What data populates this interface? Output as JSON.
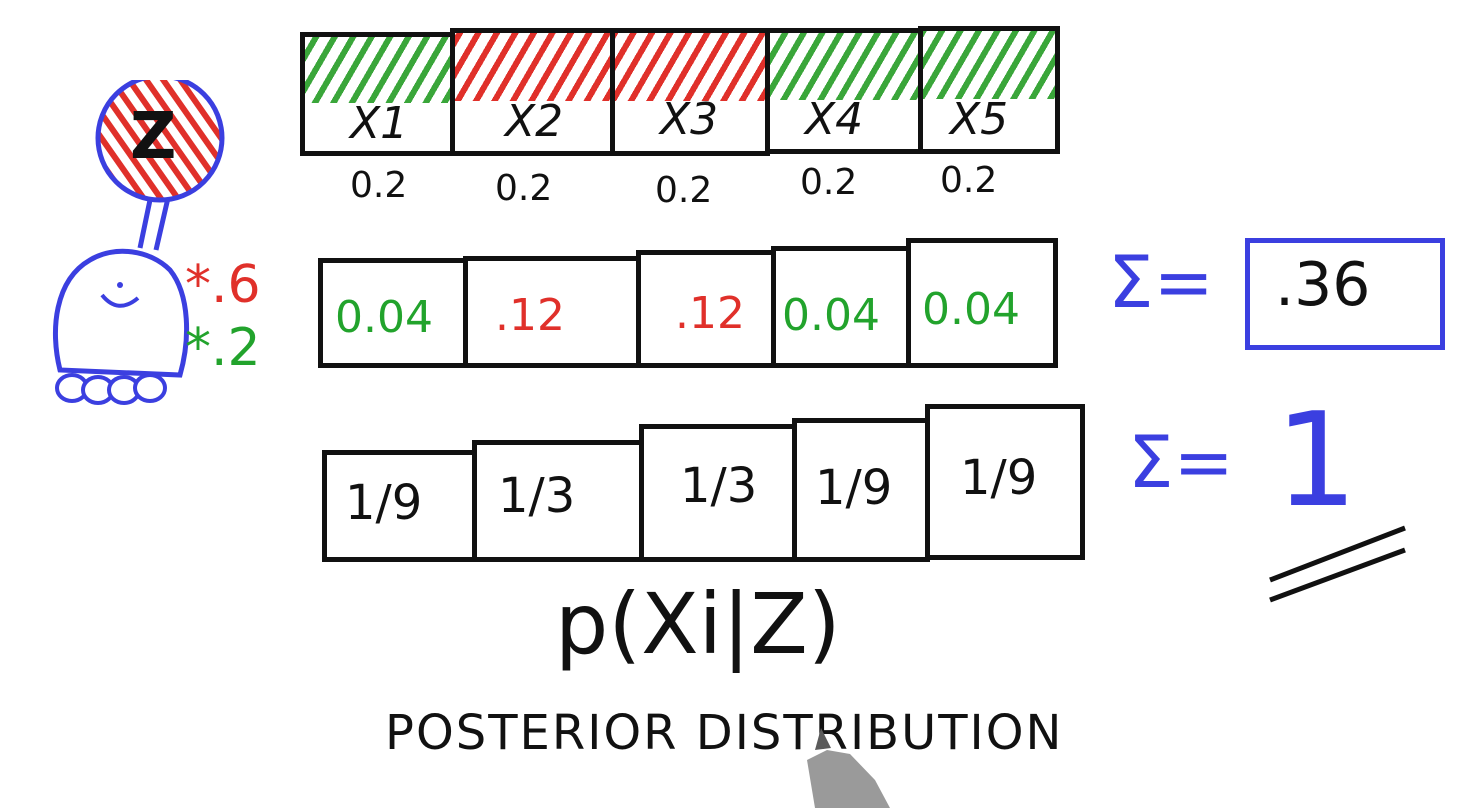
{
  "prior": {
    "cells": [
      {
        "label": "X1",
        "value": "0.2",
        "hatch": "green"
      },
      {
        "label": "X2",
        "value": "0.2",
        "hatch": "red"
      },
      {
        "label": "X3",
        "value": "0.2",
        "hatch": "red"
      },
      {
        "label": "X4",
        "value": "0.2",
        "hatch": "green"
      },
      {
        "label": "X5",
        "value": "0.2",
        "hatch": "green"
      }
    ]
  },
  "robot": {
    "measurement_label": "Z",
    "red_multiplier": "*.6",
    "green_multiplier": "*.2"
  },
  "product": {
    "cells": [
      {
        "value": "0.04",
        "color": "green"
      },
      {
        "value": ".12",
        "color": "red"
      },
      {
        "value": ".12",
        "color": "red"
      },
      {
        "value": "0.04",
        "color": "green"
      },
      {
        "value": "0.04",
        "color": "green"
      }
    ],
    "sum_symbol": "Σ=",
    "sum_value": ".36"
  },
  "posterior": {
    "cells": [
      {
        "value": "1/9"
      },
      {
        "value": "1/3"
      },
      {
        "value": "1/3"
      },
      {
        "value": "1/9"
      },
      {
        "value": "1/9"
      }
    ],
    "sum_symbol": "Σ=",
    "sum_value": "1"
  },
  "formula": "p(Xi|Z)",
  "caption": "POSTERIOR DISTRIBUTION",
  "colors": {
    "ink": "#111111",
    "green": "#22a32c",
    "red": "#e0302a",
    "blue": "#3b3fe0"
  }
}
